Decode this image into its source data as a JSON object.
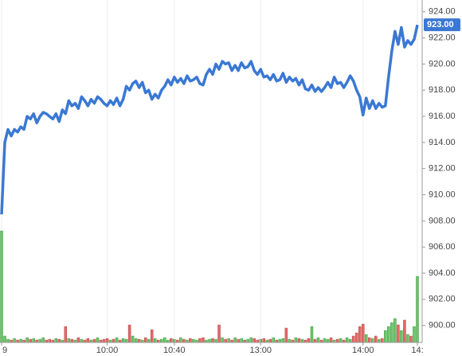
{
  "chart_data": {
    "type": "line",
    "series": [
      {
        "color": "#3a78d4",
        "values": [
          908.5,
          914,
          915,
          914.5,
          915,
          914.8,
          915.2,
          915,
          916,
          915.8,
          916.2,
          915.5,
          916,
          916.3,
          916.2,
          916,
          915.8,
          916.2,
          915.6,
          916.5,
          916.2,
          917.2,
          916.8,
          917,
          916.6,
          917.5,
          917.2,
          916.8,
          917.3,
          917,
          917.5,
          917.3,
          917,
          916.8,
          917.2,
          916.9,
          917.4,
          916.8,
          917.3,
          918.3,
          918,
          918.5,
          918.7,
          918.2,
          918.6,
          917.8,
          918,
          917.3,
          917.7,
          917.4,
          918,
          918.3,
          918.8,
          918.4,
          919,
          918.6,
          918.9,
          918.5,
          919.1,
          918.7,
          918.8,
          919,
          918.5,
          918.4,
          919.2,
          919.6,
          919.2,
          920,
          919.6,
          920.2,
          920,
          920.1,
          919.5,
          919.9,
          919.5,
          920.1,
          919.7,
          919.8,
          920.2,
          919.5,
          919.2,
          919.6,
          919,
          919.1,
          918.8,
          919.2,
          918.7,
          918.8,
          919.3,
          918.6,
          919,
          918.7,
          918.9,
          918.4,
          918.8,
          918.1,
          918,
          918.4,
          917.9,
          918.2,
          917.9,
          918.2,
          918.6,
          918.2,
          919,
          918.5,
          918.6,
          918.2,
          918.6,
          919.1,
          918.7,
          918,
          917.5,
          916.1,
          917.4,
          916.6,
          917.2,
          916.6,
          917,
          916.7,
          916.8,
          919,
          921,
          922.5,
          921.5,
          922.8,
          921.3,
          921.8,
          921.5,
          921.9,
          923
        ]
      }
    ],
    "volume": [
      140,
      8,
      4,
      3,
      5,
      3,
      4,
      3,
      6,
      4,
      5,
      3,
      4,
      6,
      3,
      4,
      3,
      5,
      4,
      3,
      20,
      5,
      4,
      3,
      6,
      4,
      3,
      5,
      3,
      4,
      6,
      3,
      4,
      5,
      3,
      4,
      6,
      3,
      5,
      4,
      22,
      8,
      5,
      4,
      3,
      6,
      4,
      16,
      5,
      3,
      4,
      6,
      3,
      5,
      4,
      3,
      6,
      4,
      3,
      5,
      4,
      3,
      5,
      6,
      3,
      4,
      5,
      4,
      22,
      6,
      4,
      5,
      3,
      6,
      4,
      5,
      3,
      4,
      6,
      5,
      3,
      4,
      5,
      3,
      4,
      6,
      3,
      4,
      5,
      18,
      4,
      3,
      6,
      5,
      4,
      3,
      5,
      20,
      4,
      6,
      3,
      5,
      4,
      6,
      3,
      4,
      5,
      3,
      6,
      4,
      8,
      12,
      20,
      23,
      10,
      6,
      5,
      8,
      4,
      5,
      15,
      20,
      25,
      30,
      22,
      15,
      28,
      10,
      8,
      20,
      83
    ],
    "volume_lim": [
      0,
      150
    ],
    "up_color": "#6cc46c",
    "down_color": "#e46a6a",
    "last_value_label": "923.00",
    "xlim": [
      -0.5,
      131.5
    ],
    "xticks": [
      {
        "value": 0,
        "label": "9"
      },
      {
        "value": 33,
        "label": "10:00"
      },
      {
        "value": 54,
        "label": "10:40"
      },
      {
        "value": 81,
        "label": "13:00"
      },
      {
        "value": 113,
        "label": "14:00"
      },
      {
        "value": 130,
        "label": "14:"
      }
    ],
    "ylim": [
      898.7,
      924.9
    ],
    "yticks": [
      {
        "value": 900,
        "label": "900.00"
      },
      {
        "value": 902,
        "label": "902.00"
      },
      {
        "value": 904,
        "label": "904.00"
      },
      {
        "value": 906,
        "label": "906.00"
      },
      {
        "value": 908,
        "label": "908.00"
      },
      {
        "value": 910,
        "label": "910.00"
      },
      {
        "value": 912,
        "label": "912.00"
      },
      {
        "value": 914,
        "label": "914.00"
      },
      {
        "value": 916,
        "label": "916.00"
      },
      {
        "value": 918,
        "label": "918.00"
      },
      {
        "value": 920,
        "label": "920.00"
      },
      {
        "value": 922,
        "label": "922.00"
      },
      {
        "value": 924,
        "label": "924.00"
      }
    ],
    "grid": true
  }
}
